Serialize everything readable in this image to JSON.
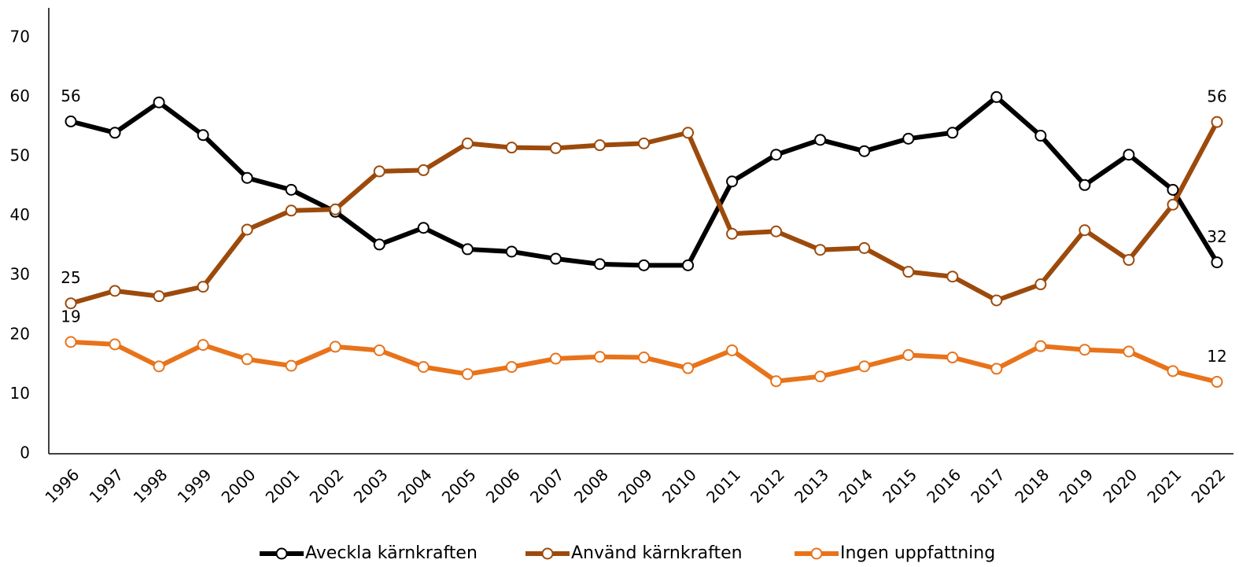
{
  "chart_data": {
    "type": "line",
    "categories": [
      "1996",
      "1997",
      "1998",
      "1999",
      "2000",
      "2001",
      "2002",
      "2003",
      "2004",
      "2005",
      "2006",
      "2007",
      "2008",
      "2009",
      "2010",
      "2011",
      "2012",
      "2013",
      "2014",
      "2015",
      "2016",
      "2017",
      "2018",
      "2019",
      "2020",
      "2021",
      "2022"
    ],
    "series": [
      {
        "name": "Aveckla kärnkraften",
        "color": "#000000",
        "values": [
          55.9,
          54.0,
          59.1,
          53.6,
          46.4,
          44.4,
          40.7,
          35.2,
          38.0,
          34.4,
          34.0,
          32.8,
          31.9,
          31.7,
          31.7,
          45.8,
          50.3,
          52.8,
          50.9,
          53.0,
          54.0,
          60.0,
          53.5,
          45.2,
          50.3,
          44.4,
          32.2
        ],
        "value_labels": [
          "56",
          null,
          null,
          null,
          null,
          null,
          null,
          null,
          null,
          null,
          null,
          null,
          null,
          null,
          null,
          null,
          null,
          null,
          null,
          null,
          null,
          null,
          null,
          null,
          null,
          null,
          "32"
        ]
      },
      {
        "name": "Använd kärnkraften",
        "color": "#9c4a0c",
        "values": [
          25.3,
          27.4,
          26.5,
          28.1,
          37.7,
          40.9,
          41.1,
          47.5,
          47.7,
          52.2,
          51.5,
          51.4,
          51.9,
          52.2,
          54.0,
          37.0,
          37.4,
          34.3,
          34.6,
          30.6,
          29.8,
          25.8,
          28.5,
          37.6,
          32.6,
          41.9,
          55.8
        ],
        "value_labels": [
          "25",
          null,
          null,
          null,
          null,
          null,
          null,
          null,
          null,
          null,
          null,
          null,
          null,
          null,
          null,
          null,
          null,
          null,
          null,
          null,
          null,
          null,
          null,
          null,
          null,
          null,
          "56"
        ]
      },
      {
        "name": "Ingen uppfattning",
        "color": "#e8731a",
        "values": [
          18.8,
          18.4,
          14.7,
          18.3,
          15.9,
          14.8,
          18.0,
          17.4,
          14.6,
          13.4,
          14.6,
          16.0,
          16.3,
          16.2,
          14.4,
          17.4,
          12.2,
          13.0,
          14.7,
          16.6,
          16.2,
          14.3,
          18.1,
          17.5,
          17.2,
          13.9,
          12.1
        ],
        "value_labels": [
          "19",
          null,
          null,
          null,
          null,
          null,
          null,
          null,
          null,
          null,
          null,
          null,
          null,
          null,
          null,
          null,
          null,
          null,
          null,
          null,
          null,
          null,
          null,
          null,
          null,
          null,
          "12"
        ]
      }
    ],
    "ylim": [
      0,
      75
    ],
    "yticks": [
      0,
      10,
      20,
      30,
      40,
      50,
      60,
      70
    ],
    "grid": false,
    "legend": "bottom"
  }
}
